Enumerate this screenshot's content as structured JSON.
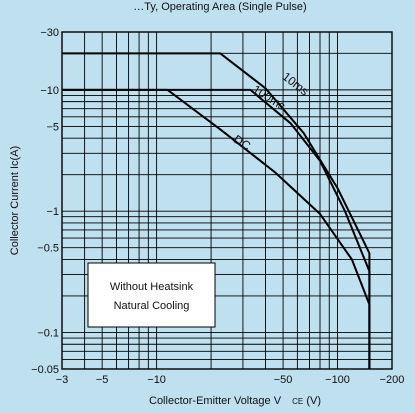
{
  "chart_data": {
    "type": "line",
    "title_fragment": "…Ty, Operating Area (Single Pulse)",
    "xlabel": "Collector-Emitter Voltage V",
    "xlabel_sub": "CE",
    "xlabel_unit": "(V)",
    "ylabel": "Collector Current Ic(A)",
    "x_scale": "log",
    "y_scale": "log",
    "x_range": [
      -3,
      -200
    ],
    "y_range": [
      -0.05,
      -30
    ],
    "x_ticks": [
      {
        "value": -3,
        "label": "−3"
      },
      {
        "value": -5,
        "label": "−5"
      },
      {
        "value": -10,
        "label": "−10"
      },
      {
        "value": -50,
        "label": "−50"
      },
      {
        "value": -100,
        "label": "−100"
      },
      {
        "value": -200,
        "label": "−200"
      }
    ],
    "y_ticks": [
      {
        "value": -30,
        "label": "−30"
      },
      {
        "value": -10,
        "label": "−10"
      },
      {
        "value": -5,
        "label": "−5"
      },
      {
        "value": -1,
        "label": "−1"
      },
      {
        "value": -0.5,
        "label": "−0.5"
      },
      {
        "value": -0.1,
        "label": "−0.1"
      },
      {
        "value": -0.05,
        "label": "−0.05"
      }
    ],
    "series": [
      {
        "name": "10ms",
        "points": [
          [
            -3,
            -20
          ],
          [
            -22.5,
            -20
          ],
          [
            -40,
            -10.3
          ],
          [
            -65,
            -4.4
          ],
          [
            -100,
            -1.55
          ],
          [
            -150,
            -0.45
          ],
          [
            -150,
            -0.05
          ]
        ]
      },
      {
        "name": "100ms",
        "points": [
          [
            -3,
            -10
          ],
          [
            -33,
            -10
          ],
          [
            -55,
            -5.3
          ],
          [
            -80,
            -2.6
          ],
          [
            -110,
            -1.0
          ],
          [
            -150,
            -0.32
          ],
          [
            -150,
            -0.05
          ]
        ]
      },
      {
        "name": "DC",
        "points": [
          [
            -3,
            -10
          ],
          [
            -11.5,
            -10
          ],
          [
            -23,
            -4.6
          ],
          [
            -45,
            -2.1
          ],
          [
            -80,
            -0.95
          ],
          [
            -120,
            -0.4
          ],
          [
            -150,
            -0.17
          ],
          [
            -150,
            -0.05
          ]
        ]
      }
    ],
    "curve_labels": [
      {
        "text": "10ms",
        "series": "10ms"
      },
      {
        "text": "100ms",
        "series": "100ms"
      },
      {
        "text": "DC",
        "series": "DC"
      }
    ],
    "legend_box": {
      "lines": [
        "Without Heatsink",
        "Natural Cooling"
      ]
    },
    "grid": true
  }
}
